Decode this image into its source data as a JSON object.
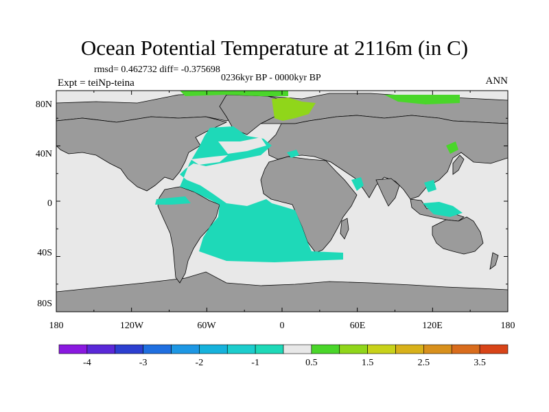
{
  "title": "Ocean Potential Temperature at 2116m (in C)",
  "stats_line": "rmsd= 0.462732  diff= -0.375698",
  "period": "0236kyr BP - 0000kyr BP",
  "experiment": "Expt = teiNp-teina",
  "season": "ANN",
  "lat_labels": [
    "80N",
    "40N",
    "0",
    "40S",
    "80S"
  ],
  "lon_labels": [
    "180",
    "120W",
    "60W",
    "0",
    "60E",
    "120E",
    "180"
  ],
  "colorbar": {
    "colors": [
      "#8a19e0",
      "#5a28d8",
      "#2c3fd0",
      "#1f6fe0",
      "#1d97e4",
      "#16b2dc",
      "#1ccdcd",
      "#1ed9b8",
      "#e8e8e8",
      "#4ad62a",
      "#90d61a",
      "#c8d21a",
      "#d8b11a",
      "#d8901c",
      "#d96c1c",
      "#d84418"
    ],
    "labels": [
      "-4",
      "-3",
      "-2",
      "-1",
      "0.5",
      "1.5",
      "2.5",
      "3.5"
    ]
  },
  "colors": {
    "land": "#9b9b9b",
    "ocean_neutral": "#e8e8e8",
    "ocean_cool": "#1ed9b8",
    "ocean_warm": "#4ad62a",
    "ocean_warm_light": "#90d61a",
    "coastline": "#000000"
  }
}
